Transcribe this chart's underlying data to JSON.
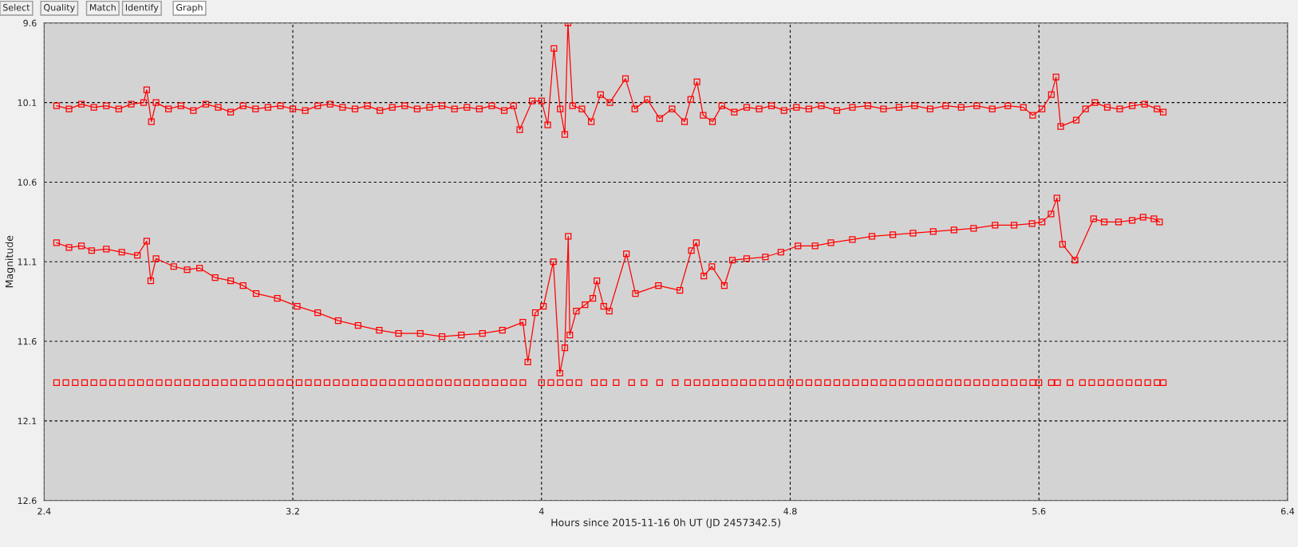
{
  "chart_data": {
    "type": "line",
    "xlabel": "Hours since 2015-11-16 0h UT (JD 2457342.5)",
    "ylabel": "Magnitude",
    "annotations": [
      "Select",
      "Quality",
      "Match",
      "Identify",
      "Graph"
    ],
    "xlim": [
      2.4,
      6.4
    ],
    "xticks": [
      2.4,
      3.2,
      4,
      4.8,
      5.6,
      6.4
    ],
    "ylim": [
      12.6,
      9.6
    ],
    "yticks": [
      9.6,
      10.1,
      10.6,
      11.1,
      11.6,
      12.1,
      12.6
    ],
    "grid": true,
    "marker": "square",
    "line_style": "solid",
    "legend": false,
    "series": [
      {
        "type": "line",
        "color": "#ff0000",
        "x": [
          2.44,
          2.48,
          2.52,
          2.56,
          2.6,
          2.64,
          2.68,
          2.72,
          2.73,
          2.745,
          2.76,
          2.8,
          2.84,
          2.88,
          2.92,
          2.96,
          3.0,
          3.04,
          3.08,
          3.12,
          3.16,
          3.2,
          3.24,
          3.28,
          3.32,
          3.36,
          3.4,
          3.44,
          3.48,
          3.52,
          3.56,
          3.6,
          3.64,
          3.68,
          3.72,
          3.76,
          3.8,
          3.84,
          3.88,
          3.91,
          3.93,
          3.97,
          4.0,
          4.02,
          4.04,
          4.06,
          4.075,
          4.085,
          4.1,
          4.13,
          4.16,
          4.19,
          4.22,
          4.27,
          4.3,
          4.34,
          4.38,
          4.42,
          4.46,
          4.48,
          4.5,
          4.52,
          4.55,
          4.58,
          4.62,
          4.66,
          4.7,
          4.74,
          4.78,
          4.82,
          4.86,
          4.9,
          4.95,
          5.0,
          5.05,
          5.1,
          5.15,
          5.2,
          5.25,
          5.3,
          5.35,
          5.4,
          5.45,
          5.5,
          5.55,
          5.58,
          5.61,
          5.64,
          5.655,
          5.67,
          5.72,
          5.75,
          5.78,
          5.82,
          5.86,
          5.9,
          5.94,
          5.98,
          6.0
        ],
        "values": [
          10.12,
          10.14,
          10.11,
          10.13,
          10.12,
          10.14,
          10.11,
          10.1,
          10.02,
          10.22,
          10.1,
          10.14,
          10.12,
          10.15,
          10.11,
          10.13,
          10.16,
          10.12,
          10.14,
          10.13,
          10.12,
          10.14,
          10.15,
          10.12,
          10.11,
          10.13,
          10.14,
          10.12,
          10.15,
          10.13,
          10.12,
          10.14,
          10.13,
          10.12,
          10.14,
          10.13,
          10.14,
          10.12,
          10.15,
          10.12,
          10.27,
          10.09,
          10.09,
          10.24,
          9.76,
          10.14,
          10.3,
          9.6,
          10.12,
          10.14,
          10.22,
          10.05,
          10.1,
          9.95,
          10.14,
          10.08,
          10.2,
          10.14,
          10.22,
          10.08,
          9.97,
          10.18,
          10.22,
          10.12,
          10.16,
          10.13,
          10.14,
          10.12,
          10.15,
          10.13,
          10.14,
          10.12,
          10.15,
          10.13,
          10.12,
          10.14,
          10.13,
          10.12,
          10.14,
          10.12,
          10.13,
          10.12,
          10.14,
          10.12,
          10.13,
          10.18,
          10.14,
          10.05,
          9.94,
          10.25,
          10.21,
          10.14,
          10.1,
          10.13,
          10.14,
          10.12,
          10.11,
          10.14,
          10.16
        ]
      },
      {
        "type": "line",
        "color": "#ff0000",
        "x": [
          2.44,
          2.48,
          2.52,
          2.553,
          2.6,
          2.65,
          2.7,
          2.73,
          2.743,
          2.76,
          2.817,
          2.86,
          2.9,
          2.95,
          3.0,
          3.04,
          3.082,
          3.15,
          3.214,
          3.28,
          3.346,
          3.41,
          3.478,
          3.54,
          3.61,
          3.68,
          3.742,
          3.81,
          3.874,
          3.94,
          3.956,
          3.98,
          4.006,
          4.038,
          4.059,
          4.075,
          4.086,
          4.091,
          4.112,
          4.14,
          4.165,
          4.178,
          4.2,
          4.218,
          4.273,
          4.302,
          4.376,
          4.445,
          4.482,
          4.498,
          4.522,
          4.548,
          4.588,
          4.614,
          4.66,
          4.72,
          4.77,
          4.825,
          4.88,
          4.931,
          5.0,
          5.063,
          5.13,
          5.195,
          5.26,
          5.327,
          5.39,
          5.459,
          5.52,
          5.578,
          5.61,
          5.639,
          5.658,
          5.676,
          5.716,
          5.776,
          5.81,
          5.856,
          5.9,
          5.935,
          5.97,
          5.988
        ],
        "values": [
          10.98,
          11.01,
          11.0,
          11.03,
          11.02,
          11.04,
          11.06,
          10.97,
          11.22,
          11.08,
          11.13,
          11.15,
          11.14,
          11.2,
          11.22,
          11.25,
          11.3,
          11.33,
          11.38,
          11.42,
          11.47,
          11.5,
          11.53,
          11.55,
          11.55,
          11.57,
          11.56,
          11.55,
          11.53,
          11.48,
          11.73,
          11.42,
          11.38,
          11.1,
          11.8,
          11.64,
          10.94,
          11.56,
          11.41,
          11.37,
          11.33,
          11.22,
          11.38,
          11.41,
          11.05,
          11.3,
          11.25,
          11.28,
          11.03,
          10.98,
          11.19,
          11.13,
          11.25,
          11.09,
          11.08,
          11.07,
          11.04,
          11.0,
          11.0,
          10.98,
          10.96,
          10.94,
          10.93,
          10.92,
          10.91,
          10.9,
          10.89,
          10.87,
          10.87,
          10.86,
          10.85,
          10.8,
          10.7,
          10.99,
          11.09,
          10.83,
          10.85,
          10.85,
          10.84,
          10.82,
          10.83,
          10.85
        ]
      },
      {
        "type": "scatter",
        "color": "#ff0000",
        "x": [
          2.44,
          2.47,
          2.5,
          2.53,
          2.56,
          2.59,
          2.62,
          2.65,
          2.68,
          2.71,
          2.74,
          2.77,
          2.8,
          2.83,
          2.86,
          2.89,
          2.92,
          2.95,
          2.98,
          3.01,
          3.04,
          3.07,
          3.1,
          3.13,
          3.16,
          3.19,
          3.22,
          3.25,
          3.28,
          3.31,
          3.34,
          3.37,
          3.4,
          3.43,
          3.46,
          3.49,
          3.52,
          3.55,
          3.58,
          3.61,
          3.64,
          3.67,
          3.7,
          3.73,
          3.76,
          3.79,
          3.82,
          3.85,
          3.88,
          3.91,
          3.94,
          4.0,
          4.03,
          4.06,
          4.09,
          4.12,
          4.17,
          4.2,
          4.24,
          4.29,
          4.33,
          4.38,
          4.43,
          4.47,
          4.5,
          4.53,
          4.56,
          4.59,
          4.62,
          4.65,
          4.68,
          4.71,
          4.74,
          4.77,
          4.8,
          4.83,
          4.86,
          4.89,
          4.92,
          4.95,
          4.98,
          5.01,
          5.04,
          5.07,
          5.1,
          5.13,
          5.16,
          5.19,
          5.22,
          5.25,
          5.28,
          5.31,
          5.34,
          5.37,
          5.4,
          5.43,
          5.46,
          5.49,
          5.52,
          5.55,
          5.58,
          5.6,
          5.64,
          5.66,
          5.7,
          5.74,
          5.77,
          5.8,
          5.83,
          5.86,
          5.89,
          5.92,
          5.95,
          5.98,
          6.0
        ],
        "values": [
          11.86,
          11.86,
          11.86,
          11.86,
          11.86,
          11.86,
          11.86,
          11.86,
          11.86,
          11.86,
          11.86,
          11.86,
          11.86,
          11.86,
          11.86,
          11.86,
          11.86,
          11.86,
          11.86,
          11.86,
          11.86,
          11.86,
          11.86,
          11.86,
          11.86,
          11.86,
          11.86,
          11.86,
          11.86,
          11.86,
          11.86,
          11.86,
          11.86,
          11.86,
          11.86,
          11.86,
          11.86,
          11.86,
          11.86,
          11.86,
          11.86,
          11.86,
          11.86,
          11.86,
          11.86,
          11.86,
          11.86,
          11.86,
          11.86,
          11.86,
          11.86,
          11.86,
          11.86,
          11.86,
          11.86,
          11.86,
          11.86,
          11.86,
          11.86,
          11.86,
          11.86,
          11.86,
          11.86,
          11.86,
          11.86,
          11.86,
          11.86,
          11.86,
          11.86,
          11.86,
          11.86,
          11.86,
          11.86,
          11.86,
          11.86,
          11.86,
          11.86,
          11.86,
          11.86,
          11.86,
          11.86,
          11.86,
          11.86,
          11.86,
          11.86,
          11.86,
          11.86,
          11.86,
          11.86,
          11.86,
          11.86,
          11.86,
          11.86,
          11.86,
          11.86,
          11.86,
          11.86,
          11.86,
          11.86,
          11.86,
          11.86,
          11.86,
          11.86,
          11.86,
          11.86,
          11.86,
          11.86,
          11.86,
          11.86,
          11.86,
          11.86,
          11.86,
          11.86,
          11.86,
          11.86
        ]
      }
    ]
  }
}
